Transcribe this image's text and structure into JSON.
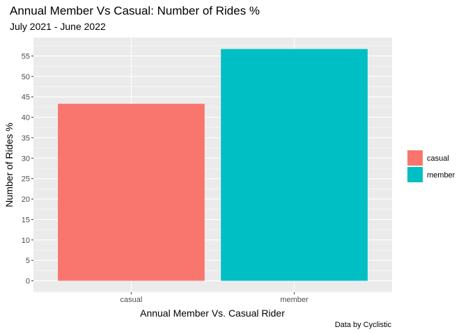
{
  "chart_data": {
    "type": "bar",
    "title": "Annual Member Vs Casual: Number of Rides %",
    "subtitle": "July 2021 - June 2022",
    "xlabel": "Annual Member Vs. Casual Rider",
    "ylabel": "Number of Rides %",
    "caption": "Data by Cyclistic",
    "categories": [
      "casual",
      "member"
    ],
    "values": [
      43.3,
      56.7
    ],
    "colors": [
      "#F8766D",
      "#00BFC4"
    ],
    "ylim": [
      -2.8,
      59.5
    ],
    "yticks": [
      0,
      5,
      10,
      15,
      20,
      25,
      30,
      35,
      40,
      45,
      50,
      55
    ],
    "grid": true,
    "legend": {
      "position": "right",
      "entries": [
        "casual",
        "member"
      ]
    }
  },
  "colors": {
    "panel_background": "#EBEBEB",
    "gridline": "#FFFFFF",
    "casual": "#F8766D",
    "member": "#00BFC4"
  }
}
